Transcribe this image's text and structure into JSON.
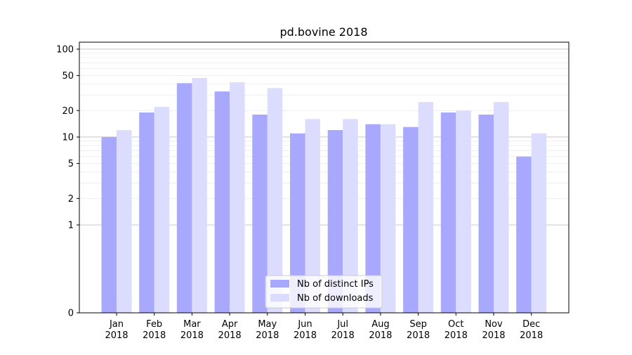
{
  "chart_data": {
    "type": "bar",
    "title": "pd.bovine 2018",
    "xlabel": "",
    "ylabel": "",
    "yscale": "symlog",
    "ylim": [
      0,
      120
    ],
    "yticks": [
      0,
      1,
      2,
      5,
      10,
      20,
      50,
      100
    ],
    "ytick_labels": [
      "0",
      "1",
      "2",
      "5",
      "10",
      "20",
      "50",
      "100"
    ],
    "grid": true,
    "legend_position": "bottom-center",
    "categories": [
      "Jan\n2018",
      "Feb\n2018",
      "Mar\n2018",
      "Apr\n2018",
      "May\n2018",
      "Jun\n2018",
      "Jul\n2018",
      "Aug\n2018",
      "Sep\n2018",
      "Oct\n2018",
      "Nov\n2018",
      "Dec\n2018"
    ],
    "series": [
      {
        "name": "Nb of distinct IPs",
        "color": "#a8a8ff",
        "values": [
          10,
          19,
          41,
          33,
          18,
          11,
          12,
          14,
          13,
          19,
          18,
          6
        ]
      },
      {
        "name": "Nb of downloads",
        "color": "#dcdcff",
        "values": [
          12,
          22,
          47,
          42,
          36,
          16,
          16,
          14,
          25,
          20,
          25,
          11
        ]
      }
    ]
  }
}
